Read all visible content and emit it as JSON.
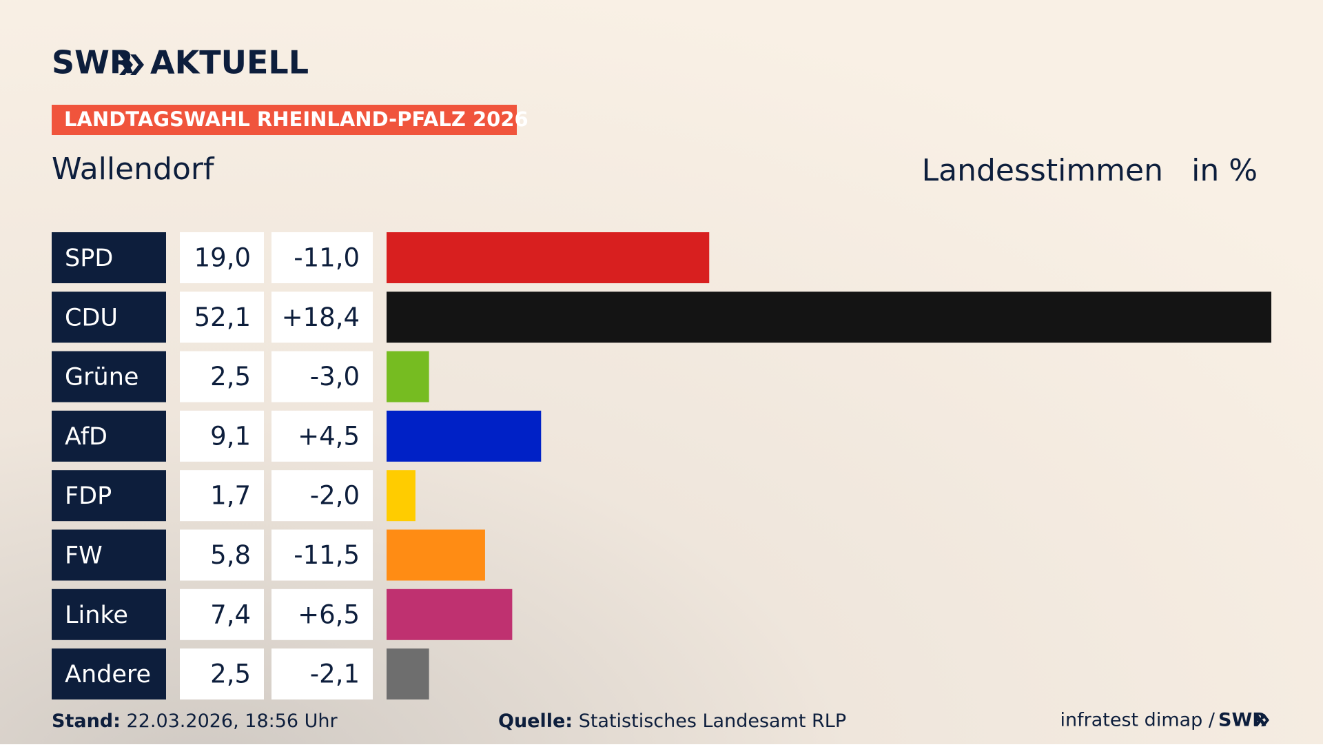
{
  "chart_data": {
    "type": "bar",
    "logo": "SWR",
    "logo_suffix": "AKTUELL",
    "kicker": "LANDTAGSWAHL RHEINLAND-PFALZ 2026",
    "title": "Wallendorf",
    "measure": "Landesstimmen",
    "unit": "in %",
    "categories": [
      "SPD",
      "CDU",
      "Grüne",
      "AfD",
      "FDP",
      "FW",
      "Linke",
      "Andere"
    ],
    "values": [
      19.0,
      52.1,
      2.5,
      9.1,
      1.7,
      5.8,
      7.4,
      2.5
    ],
    "value_labels": [
      "19,0",
      "52,1",
      "2,5",
      "9,1",
      "1,7",
      "5,8",
      "7,4",
      "2,5"
    ],
    "colors": [
      "#d81f1f",
      "#141414",
      "#76bc21",
      "#0021c6",
      "#ffcc00",
      "#ff8c14",
      "#bf3170",
      "#6e6e6e"
    ],
    "changes": {
      "values": [
        -11.0,
        18.4,
        -3.0,
        4.5,
        -2.0,
        -11.5,
        6.5,
        -2.1
      ],
      "value_labels": [
        "-11,0",
        "+18,4",
        "-3,0",
        "+4,5",
        "-2,0",
        "-11,5",
        "+6,5",
        "-2,1"
      ]
    },
    "stand_label": "Stand:",
    "stand": "22.03.2026, 18:56 Uhr",
    "source_label": "Quelle:",
    "source": "Statistisches Landesamt RLP",
    "credit": "infratest dimap /",
    "credit_logo": "SWR"
  }
}
